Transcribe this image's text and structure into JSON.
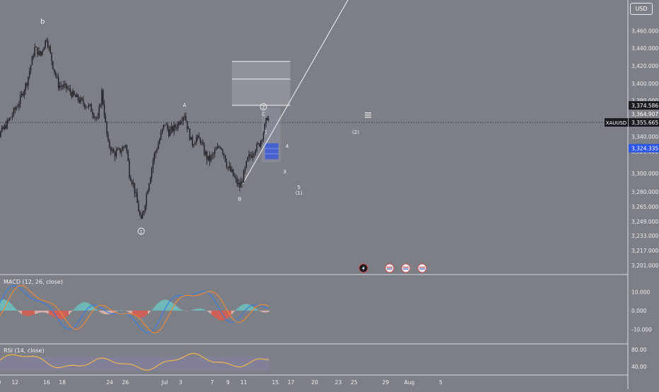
{
  "symbol": "XAUUSD",
  "currency_button": "USD",
  "colors": {
    "background": "#7d7f86",
    "price_line": "#e8e8ea",
    "candle": "#1a1b20",
    "macd_line": "#3b7de0",
    "signal_line": "#e8883a",
    "hist_up": "#6ec6c4",
    "hist_down": "#e8b7b1",
    "hist_down_strong": "#e25a4c",
    "rsi_line": "#f0b451",
    "rsi_band": "#8a84b8",
    "blue_box": "#3c5ad8",
    "badge_dark": "#1a1b20"
  },
  "price_badges": [
    {
      "label": "3,374.586",
      "style": "dark"
    },
    {
      "label": "3,364.907",
      "style": "plain"
    },
    {
      "label": "3,355.665",
      "style": "dark"
    },
    {
      "label": "3,324.335",
      "style": "blue"
    }
  ],
  "chart_data": {
    "type": "candlestick",
    "symbol": "XAUUSD",
    "current_price": 3355.665,
    "ylim": [
      3195,
      3485
    ],
    "price_ticks": [
      "3,460.000",
      "3,440.000",
      "3,420.000",
      "3,400.000",
      "3,380.000",
      "3,340.000",
      "3,320.000",
      "3,300.000",
      "3,280.000",
      "3,265.000",
      "3,249.000",
      "3,233.000",
      "3,217.000",
      "3,201.000"
    ],
    "price_tick_values": [
      3460,
      3440,
      3420,
      3400,
      3380,
      3340,
      3320,
      3300,
      3280,
      3265,
      3249,
      3233,
      3217,
      3201
    ],
    "x_ticks": [
      "0",
      "12",
      "16",
      "18",
      "24",
      "26",
      "Jul",
      "3",
      "7",
      "9",
      "11",
      "15",
      "17",
      "20",
      "23",
      "25",
      "29",
      "Aug",
      "5"
    ],
    "x_tick_days": [
      10,
      12,
      16,
      18,
      24,
      26,
      31,
      33,
      37,
      39,
      41,
      45,
      47,
      50,
      53,
      55,
      59,
      62,
      66
    ],
    "x_tick_note": "June day numbers continue past 30 (Jul = day 31)",
    "close_path": [
      [
        8.5,
        3320
      ],
      [
        9.5,
        3336
      ],
      [
        10.5,
        3348
      ],
      [
        11.5,
        3362
      ],
      [
        12.5,
        3378
      ],
      [
        13.5,
        3402
      ],
      [
        14.5,
        3440
      ],
      [
        15.2,
        3432
      ],
      [
        16,
        3452
      ],
      [
        16.8,
        3420
      ],
      [
        17.5,
        3398
      ],
      [
        18.5,
        3395
      ],
      [
        19.5,
        3385
      ],
      [
        20.5,
        3378
      ],
      [
        21.5,
        3372
      ],
      [
        22.5,
        3358
      ],
      [
        23,
        3390
      ],
      [
        23.8,
        3330
      ],
      [
        24.5,
        3318
      ],
      [
        25.5,
        3322
      ],
      [
        26,
        3330
      ],
      [
        26.5,
        3300
      ],
      [
        27,
        3288
      ],
      [
        27.5,
        3268
      ],
      [
        28,
        3248
      ],
      [
        28.5,
        3270
      ],
      [
        29,
        3292
      ],
      [
        29.5,
        3312
      ],
      [
        30,
        3325
      ],
      [
        30.5,
        3342
      ],
      [
        31,
        3355
      ],
      [
        31.5,
        3345
      ],
      [
        32,
        3348
      ],
      [
        32.5,
        3352
      ],
      [
        33,
        3360
      ],
      [
        33.5,
        3365
      ],
      [
        34,
        3345
      ],
      [
        34.5,
        3330
      ],
      [
        35,
        3338
      ],
      [
        35.5,
        3335
      ],
      [
        36,
        3320
      ],
      [
        36.5,
        3312
      ],
      [
        37,
        3315
      ],
      [
        37.5,
        3322
      ],
      [
        38,
        3328
      ],
      [
        38.5,
        3318
      ],
      [
        39,
        3305
      ],
      [
        39.5,
        3300
      ],
      [
        40,
        3292
      ],
      [
        40.5,
        3285
      ],
      [
        41,
        3298
      ],
      [
        41.5,
        3312
      ],
      [
        42,
        3318
      ],
      [
        42.5,
        3325
      ],
      [
        43,
        3330
      ],
      [
        43.5,
        3345
      ],
      [
        44,
        3362
      ],
      [
        44.3,
        3356
      ]
    ],
    "macd": {
      "label": "MACD (12, 26, close)",
      "ylim": [
        -15,
        18
      ],
      "ticks": [
        10,
        0,
        -10
      ],
      "tick_labels": [
        "10.000",
        "0.000",
        "-10.000"
      ]
    },
    "rsi": {
      "label": "RSI (14, close)",
      "ylim": [
        25,
        85
      ],
      "ticks": [
        80,
        40
      ],
      "tick_labels": [
        "80.00",
        "40.00"
      ]
    },
    "annotations": [
      {
        "text": "b",
        "day": 15.5,
        "price": 3468
      },
      {
        "text": "A",
        "day": 33.5,
        "price": 3373
      },
      {
        "text": "B",
        "day": 40.5,
        "price": 3271
      },
      {
        "text": "C",
        "day": 43.5,
        "price": 3363
      },
      {
        "text": "1",
        "day": 43.8,
        "price": 3343
      },
      {
        "text": "3",
        "day": 46.2,
        "price": 3300
      },
      {
        "text": "4",
        "day": 46.5,
        "price": 3325
      },
      {
        "text": "5",
        "day": 48.0,
        "price": 3283
      },
      {
        "text": "(1)",
        "day": 48.0,
        "price": 3277
      },
      {
        "text": "(2)",
        "day": 55.2,
        "price": 3343
      }
    ],
    "circled_waves": [
      {
        "text": "1",
        "day": 28.0,
        "price": 3238
      },
      {
        "text": "2",
        "day": 43.5,
        "price": 3373
      }
    ],
    "horizontal_levels": [
      3425,
      3405
    ],
    "range_box": {
      "top": 3425,
      "bottom": 3374.586,
      "day_start": 39.5,
      "day_end": 46.9
    },
    "blue_box": {
      "top": 3331,
      "bottom": 3313,
      "day_start": 43.7,
      "day_end": 45.4
    },
    "trendline": {
      "from": [
        40.5,
        3283
      ],
      "to": [
        54.5,
        3500
      ]
    }
  }
}
